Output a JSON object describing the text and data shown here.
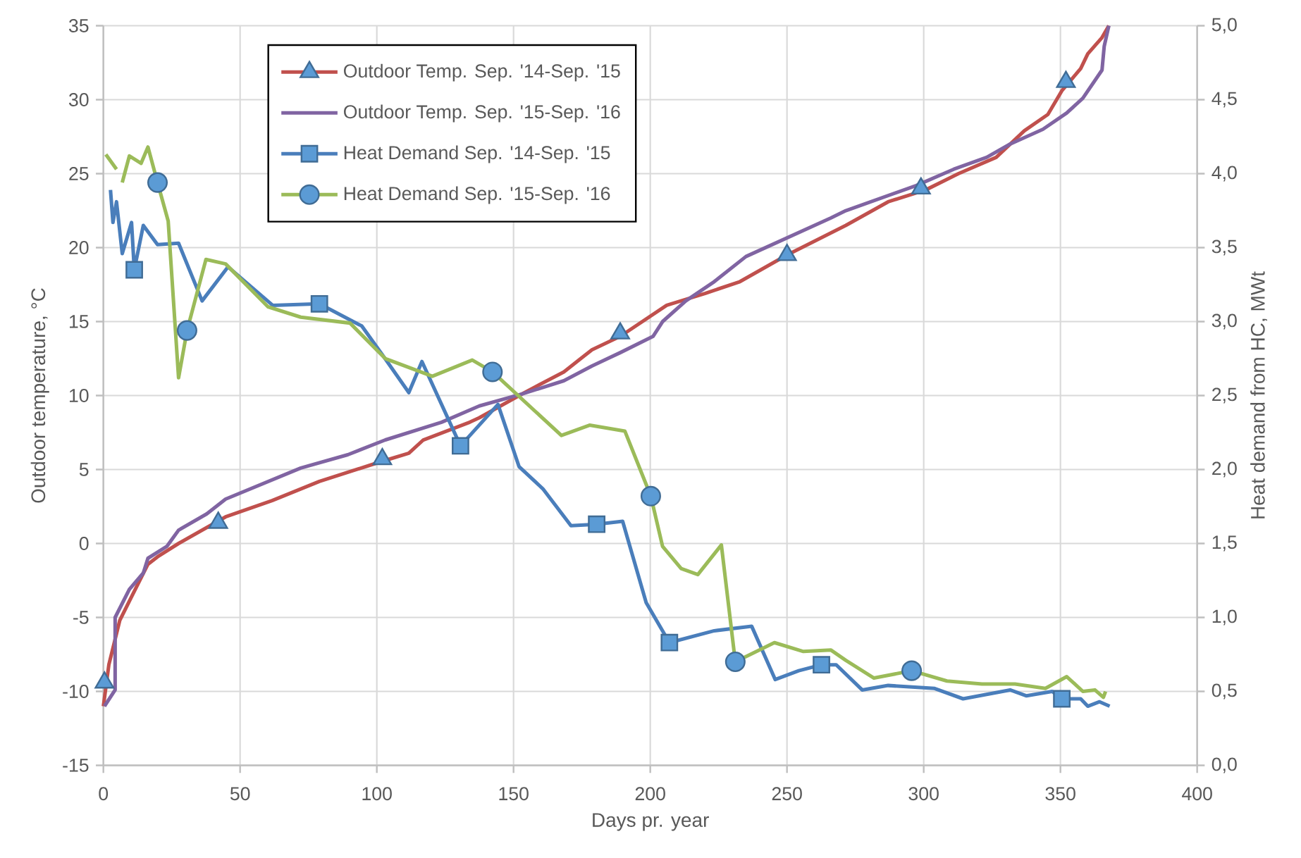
{
  "chart_data": {
    "type": "line",
    "xlabel": "Days pr. year",
    "ylabel": "Outdoor temperature,  °C",
    "y2label": "Heat demand from HC, MWt",
    "xlim": [
      0,
      400
    ],
    "xticks": [
      0,
      50,
      100,
      150,
      200,
      250,
      300,
      350,
      400
    ],
    "ylim": [
      -15,
      35
    ],
    "yticks": [
      -15,
      -10,
      -5,
      0,
      5,
      10,
      15,
      20,
      25,
      30,
      35
    ],
    "y2lim": [
      0,
      5
    ],
    "y2ticks": [
      {
        "value": 0,
        "label": "0,0"
      },
      {
        "value": 0.5,
        "label": "0,5"
      },
      {
        "value": 1,
        "label": "1,0"
      },
      {
        "value": 1.5,
        "label": "1,5"
      },
      {
        "value": 2,
        "label": "2,0"
      },
      {
        "value": 2.5,
        "label": "2,5"
      },
      {
        "value": 3,
        "label": "3,0"
      },
      {
        "value": 3.5,
        "label": "3,5"
      },
      {
        "value": 4,
        "label": "4,0"
      },
      {
        "value": 4.5,
        "label": "4,5"
      },
      {
        "value": 5,
        "label": "5,0"
      }
    ],
    "grid": true,
    "legend": "top left",
    "series": [
      {
        "name": "Outdoor Temp. Sep. '14-Sep. '15",
        "color": "#c0504d",
        "x": [
          0,
          2,
          6,
          10.3,
          16.3,
          19.8,
          27.5,
          44.7,
          61.7,
          79,
          101,
          111.7,
          117,
          134,
          137.5,
          153,
          168.4,
          178.7,
          189,
          206,
          220,
          232.8,
          250,
          271.5,
          287,
          300.7,
          312.7,
          326.5,
          336.8,
          345.4,
          350.5,
          357.4,
          360,
          365.2,
          367.7
        ],
        "values": [
          -11,
          -8.2,
          -5.2,
          -3.6,
          -1.4,
          -0.9,
          0,
          1.8,
          2.9,
          4.2,
          5.5,
          6.1,
          7,
          8.2,
          8.5,
          10.1,
          11.6,
          13.1,
          14,
          16.1,
          16.9,
          17.7,
          19.5,
          21.5,
          23.1,
          23.9,
          25,
          26.1,
          27.9,
          29,
          30.6,
          32.1,
          33.1,
          34.2,
          35
        ]
      },
      {
        "type": "scatter",
        "color": "#5b9bd5",
        "marker": "triangle",
        "x": [
          0.4,
          42,
          102,
          189,
          250,
          299,
          352
        ],
        "values": [
          -9.4,
          1.4,
          5.7,
          14.2,
          19.5,
          24,
          31.2
        ]
      },
      {
        "name": "Outdoor Temp. Sep. '15-Sep. '16",
        "color": "#8064a2",
        "x": [
          0.4,
          4.3,
          4.3,
          9.5,
          14.6,
          16.3,
          23.2,
          27.5,
          37.8,
          44.7,
          72.2,
          89.4,
          103.1,
          123.7,
          137.5,
          153,
          168.4,
          178.7,
          189,
          201,
          204.5,
          213,
          223.4,
          235,
          266,
          271.5,
          297.3,
          311,
          323,
          331.6,
          343.6,
          352.3,
          358.2,
          365.2,
          366,
          367.7
        ],
        "values": [
          -11,
          -9.9,
          -5,
          -3.1,
          -2,
          -1,
          -0.2,
          0.9,
          2,
          3,
          5.1,
          6,
          7,
          8.2,
          9.3,
          10.1,
          11,
          12,
          12.9,
          14,
          15,
          16.4,
          17.7,
          19.4,
          22,
          22.5,
          24.2,
          25.3,
          26.1,
          27,
          28,
          29.1,
          30.1,
          32,
          33.6,
          35
        ]
      },
      {
        "name": "Heat Demand Sep. '14-Sep. '15",
        "axis": "y2",
        "color": "#4a7ebb",
        "x": [
          2.6,
          3.5,
          4.8,
          6.9,
          10.3,
          11.3,
          14.6,
          19.8,
          27.5,
          36.1,
          45.6,
          61.9,
          79,
          94.5,
          103,
          111.7,
          116.5,
          130.6,
          144.3,
          152,
          160.7,
          171,
          180.4,
          189.9,
          198.5,
          207,
          223.4,
          237.1,
          245.7,
          254.3,
          262.6,
          268,
          277.5,
          287,
          304,
          314.4,
          331.6,
          337.6,
          347,
          350.5,
          357.4,
          360,
          364.3,
          368
        ],
        "values": [
          3.89,
          3.67,
          3.81,
          3.46,
          3.67,
          3.35,
          3.65,
          3.52,
          3.53,
          3.14,
          3.37,
          3.11,
          3.12,
          2.97,
          2.75,
          2.52,
          2.73,
          2.16,
          2.44,
          2.02,
          1.87,
          1.62,
          1.63,
          1.65,
          1.1,
          0.83,
          0.91,
          0.94,
          0.58,
          0.64,
          0.68,
          0.68,
          0.51,
          0.54,
          0.52,
          0.45,
          0.51,
          0.47,
          0.5,
          0.45,
          0.45,
          0.4,
          0.43,
          0.4
        ]
      },
      {
        "type": "scatter",
        "axis": "y2",
        "color": "#5b9bd5",
        "marker": "square",
        "x": [
          11.3,
          79,
          130.6,
          180.4,
          207,
          262.6,
          350.5
        ],
        "values": [
          3.35,
          3.12,
          2.16,
          1.63,
          0.83,
          0.68,
          0.45
        ]
      },
      {
        "name": "Heat Demand Sep. '15-Sep. '16",
        "axis": "y2",
        "color": "#9bbb59",
        "x": [
          0.9,
          4.8,
          5.8,
          6.9,
          9.5,
          13.8,
          16.3,
          19.8,
          23.7,
          27.5,
          30.6,
          37.5,
          44.7,
          60.2,
          72.2,
          90.2,
          103.1,
          120.3,
          134.9,
          142.3,
          167.5,
          177.8,
          190.7,
          200.2,
          204.5,
          211.3,
          217.4,
          226,
          231.1,
          245.4,
          256,
          266,
          271.5,
          281.8,
          295.6,
          308.5,
          321.3,
          333.4,
          344.5,
          352.3,
          358.2,
          362.6,
          365.7,
          366.5
        ],
        "values": [
          4.13,
          4.03,
          null,
          3.94,
          4.12,
          4.07,
          4.18,
          3.94,
          3.68,
          2.62,
          2.94,
          3.42,
          3.39,
          3.1,
          3.03,
          2.99,
          2.75,
          2.63,
          2.74,
          2.66,
          2.23,
          2.3,
          2.26,
          1.82,
          1.48,
          1.33,
          1.29,
          1.49,
          0.7,
          0.83,
          0.77,
          0.78,
          0.71,
          0.59,
          0.64,
          0.57,
          0.55,
          0.55,
          0.52,
          0.6,
          0.5,
          0.51,
          0.46,
          0.5
        ]
      },
      {
        "type": "scatter",
        "axis": "y2",
        "color": "#5b9bd5",
        "marker": "circle",
        "x": [
          19.8,
          30.6,
          142.3,
          200.2,
          231.1,
          295.6
        ],
        "values": [
          3.94,
          2.94,
          2.66,
          1.82,
          0.7,
          0.64
        ]
      }
    ]
  }
}
